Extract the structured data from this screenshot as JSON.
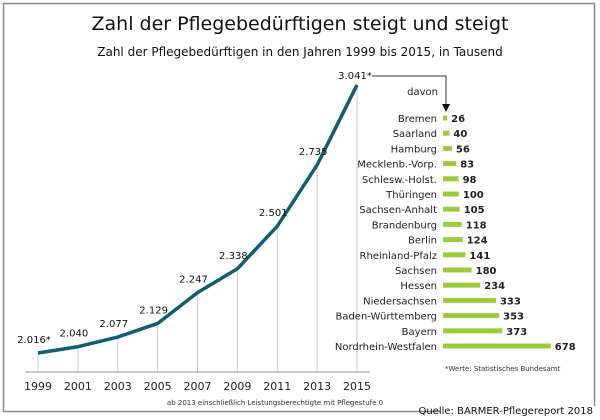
{
  "chart_data": [
    {
      "type": "line",
      "title": "Zahl der Pflegebedürftigen steigt und steigt",
      "subtitle": "Zahl der Pflegebedürftigen in den Jahren 1999 bis 2015, in Tausend",
      "x": [
        "1999",
        "2001",
        "2003",
        "2005",
        "2007",
        "2009",
        "2011",
        "2013",
        "2015"
      ],
      "values": [
        2016,
        2040,
        2077,
        2129,
        2247,
        2338,
        2501,
        2735,
        3041
      ],
      "labels": [
        "2.016*",
        "2.040",
        "2.077",
        "2.129",
        "2.247",
        "2.338",
        "2.501",
        "2.735",
        "3.041*"
      ],
      "color": "#0f5e73",
      "grid": "vertical",
      "note": "ab 2013 einschließlich Leistungsberechtigte mit Pflegestufe 0"
    },
    {
      "type": "bar",
      "orientation": "horizontal",
      "header": "davon",
      "categories": [
        "Bremen",
        "Saarland",
        "Hamburg",
        "Mecklenb.-Vorp.",
        "Schlesw.-Holst.",
        "Thüringen",
        "Sachsen-Anhalt",
        "Brandenburg",
        "Berlin",
        "Rheinland-Pfalz",
        "Sachsen",
        "Hessen",
        "Niedersachsen",
        "Baden-Württemberg",
        "Bayern",
        "Nordrhein-Westfalen"
      ],
      "values": [
        26,
        40,
        56,
        83,
        98,
        100,
        105,
        118,
        124,
        141,
        180,
        234,
        333,
        353,
        373,
        678
      ],
      "color": "#9ccc3c",
      "footnote": "*Werte: Statistisches Bundesamt"
    }
  ],
  "source": "Quelle: BARMER-Pflegereport 2018"
}
